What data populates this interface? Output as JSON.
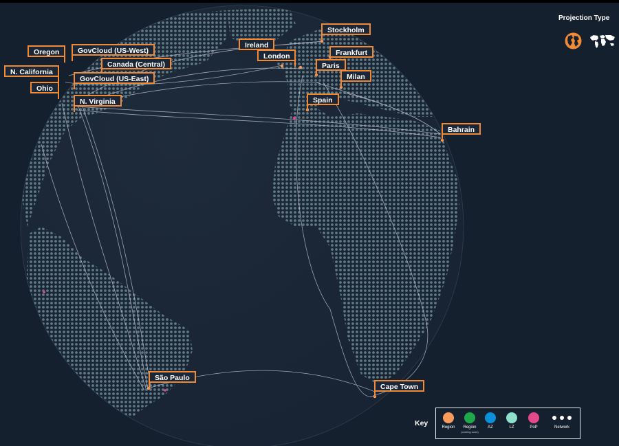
{
  "regions": [
    {
      "label": "Oregon"
    },
    {
      "label": "GovCloud (US-West)"
    },
    {
      "label": "Canada (Central)"
    },
    {
      "label": "N. California"
    },
    {
      "label": "GovCloud (US-East)"
    },
    {
      "label": "Ohio"
    },
    {
      "label": "N. Virginia"
    },
    {
      "label": "Ireland"
    },
    {
      "label": "London"
    },
    {
      "label": "Stockholm"
    },
    {
      "label": "Frankfurt"
    },
    {
      "label": "Paris"
    },
    {
      "label": "Milan"
    },
    {
      "label": "Spain"
    },
    {
      "label": "Bahrain"
    },
    {
      "label": "São Paulo"
    },
    {
      "label": "Cape Town"
    }
  ],
  "projection": {
    "title": "Projection Type",
    "options": [
      {
        "icon": "globe-icon",
        "selected": true
      },
      {
        "icon": "world-map-icon",
        "selected": false
      }
    ]
  },
  "key": {
    "title": "Key",
    "items": [
      {
        "label": "Region",
        "sub": "",
        "color": "#f99b5c"
      },
      {
        "label": "Region",
        "sub": "(coming soon)",
        "color": "#1fa84a"
      },
      {
        "label": "AZ",
        "sub": "",
        "color": "#0a8fd9"
      },
      {
        "label": "LZ",
        "sub": "",
        "color": "#8ee0c8"
      },
      {
        "label": "PoP",
        "sub": "",
        "color": "#e2498a"
      },
      {
        "label": "Network",
        "sub": "",
        "color": "#ffffff"
      }
    ]
  },
  "colors": {
    "background": "#15202f",
    "globe": "#1c2837",
    "land_dots": "#5f7a83",
    "accent": "#f08a36",
    "network_lines": "#c9ccd6"
  }
}
